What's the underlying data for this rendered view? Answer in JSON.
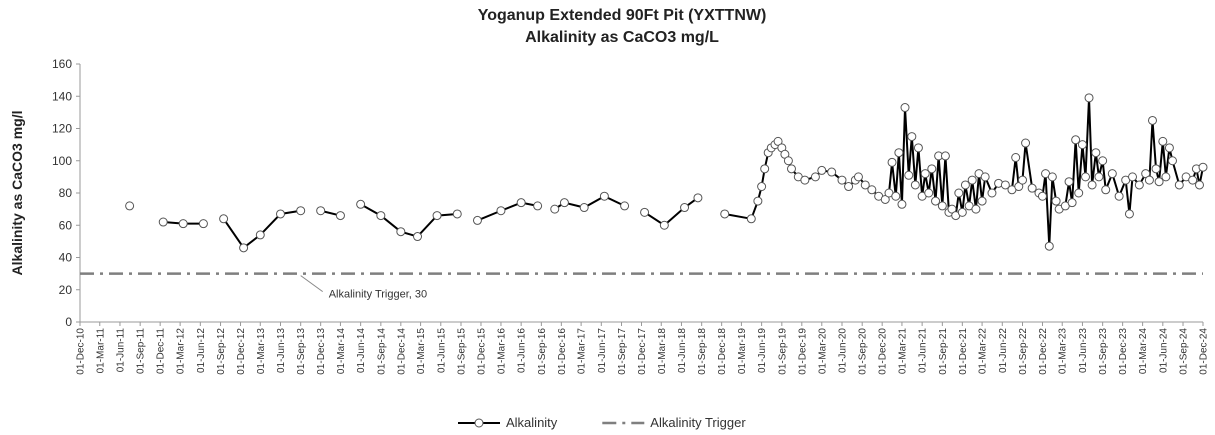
{
  "chart_data": {
    "type": "line",
    "title": "Yoganup Extended 90Ft Pit (YXTTNW)",
    "subtitle": "Alkalinity as CaCO3 mg/L",
    "y_label": "Alkalinity as CaCO3 mg/l",
    "ylim": [
      0,
      160
    ],
    "yticks": [
      0,
      20,
      40,
      60,
      80,
      100,
      120,
      140,
      160
    ],
    "xlim": [
      "2010-12-01",
      "2024-12-01"
    ],
    "xticks": [
      {
        "value": "2010-12-01",
        "label": "01-Dec-10"
      },
      {
        "value": "2011-03-01",
        "label": "01-Mar-11"
      },
      {
        "value": "2011-06-01",
        "label": "01-Jun-11"
      },
      {
        "value": "2011-09-01",
        "label": "01-Sep-11"
      },
      {
        "value": "2011-12-01",
        "label": "01-Dec-11"
      },
      {
        "value": "2012-03-01",
        "label": "01-Mar-12"
      },
      {
        "value": "2012-06-01",
        "label": "01-Jun-12"
      },
      {
        "value": "2012-09-01",
        "label": "01-Sep-12"
      },
      {
        "value": "2012-12-01",
        "label": "01-Dec-12"
      },
      {
        "value": "2013-03-01",
        "label": "01-Mar-13"
      },
      {
        "value": "2013-06-01",
        "label": "01-Jun-13"
      },
      {
        "value": "2013-09-01",
        "label": "01-Sep-13"
      },
      {
        "value": "2013-12-01",
        "label": "01-Dec-13"
      },
      {
        "value": "2014-03-01",
        "label": "01-Mar-14"
      },
      {
        "value": "2014-06-01",
        "label": "01-Jun-14"
      },
      {
        "value": "2014-09-01",
        "label": "01-Sep-14"
      },
      {
        "value": "2014-12-01",
        "label": "01-Dec-14"
      },
      {
        "value": "2015-03-01",
        "label": "01-Mar-15"
      },
      {
        "value": "2015-06-01",
        "label": "01-Jun-15"
      },
      {
        "value": "2015-09-01",
        "label": "01-Sep-15"
      },
      {
        "value": "2015-12-01",
        "label": "01-Dec-15"
      },
      {
        "value": "2016-03-01",
        "label": "01-Mar-16"
      },
      {
        "value": "2016-06-01",
        "label": "01-Jun-16"
      },
      {
        "value": "2016-09-01",
        "label": "01-Sep-16"
      },
      {
        "value": "2016-12-01",
        "label": "01-Dec-16"
      },
      {
        "value": "2017-03-01",
        "label": "01-Mar-17"
      },
      {
        "value": "2017-06-01",
        "label": "01-Jun-17"
      },
      {
        "value": "2017-09-01",
        "label": "01-Sep-17"
      },
      {
        "value": "2017-12-01",
        "label": "01-Dec-17"
      },
      {
        "value": "2018-03-01",
        "label": "01-Mar-18"
      },
      {
        "value": "2018-06-01",
        "label": "01-Jun-18"
      },
      {
        "value": "2018-09-01",
        "label": "01-Sep-18"
      },
      {
        "value": "2018-12-01",
        "label": "01-Dec-18"
      },
      {
        "value": "2019-03-01",
        "label": "01-Mar-19"
      },
      {
        "value": "2019-06-01",
        "label": "01-Jun-19"
      },
      {
        "value": "2019-09-01",
        "label": "01-Sep-19"
      },
      {
        "value": "2019-12-01",
        "label": "01-Dec-19"
      },
      {
        "value": "2020-03-01",
        "label": "01-Mar-20"
      },
      {
        "value": "2020-06-01",
        "label": "01-Jun-20"
      },
      {
        "value": "2020-09-01",
        "label": "01-Sep-20"
      },
      {
        "value": "2020-12-01",
        "label": "01-Dec-20"
      },
      {
        "value": "2021-03-01",
        "label": "01-Mar-21"
      },
      {
        "value": "2021-06-01",
        "label": "01-Jun-21"
      },
      {
        "value": "2021-09-01",
        "label": "01-Sep-21"
      },
      {
        "value": "2021-12-01",
        "label": "01-Dec-21"
      },
      {
        "value": "2022-03-01",
        "label": "01-Mar-22"
      },
      {
        "value": "2022-06-01",
        "label": "01-Jun-22"
      },
      {
        "value": "2022-09-01",
        "label": "01-Sep-22"
      },
      {
        "value": "2022-12-01",
        "label": "01-Dec-22"
      },
      {
        "value": "2023-03-01",
        "label": "01-Mar-23"
      },
      {
        "value": "2023-06-01",
        "label": "01-Jun-23"
      },
      {
        "value": "2023-09-01",
        "label": "01-Sep-23"
      },
      {
        "value": "2023-12-01",
        "label": "01-Dec-23"
      },
      {
        "value": "2024-03-01",
        "label": "01-Mar-24"
      },
      {
        "value": "2024-06-01",
        "label": "01-Jun-24"
      },
      {
        "value": "2024-09-01",
        "label": "01-Sep-24"
      },
      {
        "value": "2024-12-01",
        "label": "01-Dec-24"
      }
    ],
    "grid": false,
    "legend": "bottom",
    "series": [
      {
        "name": "Alkalinity",
        "color": "#000000",
        "marker": "circle",
        "x": [
          "2011-07-15",
          null,
          "2011-12-15",
          "2012-03-15",
          "2012-06-15",
          null,
          "2012-09-15",
          "2012-12-15",
          "2013-03-01",
          "2013-06-01",
          "2013-09-01",
          null,
          "2013-12-01",
          "2014-03-01",
          null,
          "2014-06-01",
          "2014-09-01",
          "2014-12-01",
          "2015-02-15",
          "2015-05-15",
          "2015-08-15",
          null,
          "2015-11-15",
          "2016-03-01",
          "2016-06-01",
          "2016-08-15",
          null,
          "2016-11-01",
          "2016-12-15",
          "2017-03-15",
          "2017-06-15",
          "2017-09-15",
          null,
          "2017-12-15",
          "2018-03-15",
          "2018-06-15",
          "2018-08-15",
          null,
          "2018-12-15",
          "2019-04-15",
          "2019-05-15",
          "2019-06-01",
          "2019-06-15",
          "2019-07-01",
          "2019-07-15",
          "2019-08-01",
          "2019-08-15",
          "2019-09-01",
          "2019-09-15",
          "2019-10-01",
          "2019-10-15",
          "2019-11-15",
          "2019-12-15",
          "2020-02-01",
          "2020-03-01",
          "2020-04-15",
          "2020-06-01",
          "2020-07-01",
          "2020-08-01",
          "2020-08-15",
          "2020-09-15",
          "2020-10-15",
          "2020-11-15",
          "2020-12-15",
          "2021-01-01",
          "2021-01-15",
          "2021-02-01",
          "2021-02-15",
          "2021-03-01",
          "2021-03-15",
          "2021-04-01",
          "2021-04-15",
          "2021-05-01",
          "2021-05-15",
          "2021-06-01",
          "2021-06-15",
          "2021-07-01",
          "2021-07-15",
          "2021-08-01",
          "2021-08-15",
          "2021-09-01",
          "2021-09-15",
          "2021-10-01",
          "2021-10-15",
          "2021-11-01",
          "2021-11-15",
          "2021-12-01",
          "2021-12-15",
          "2022-01-01",
          "2022-01-15",
          "2022-02-01",
          "2022-02-15",
          "2022-03-01",
          "2022-03-15",
          "2022-04-15",
          "2022-05-15",
          "2022-06-15",
          "2022-07-15",
          "2022-08-01",
          "2022-08-15",
          "2022-09-01",
          "2022-09-15",
          "2022-10-15",
          "2022-11-15",
          "2022-12-01",
          "2022-12-15",
          "2023-01-01",
          "2023-01-15",
          "2023-02-01",
          "2023-02-15",
          "2023-03-15",
          "2023-04-01",
          "2023-04-15",
          "2023-05-01",
          "2023-05-15",
          "2023-06-01",
          "2023-06-15",
          "2023-07-01",
          "2023-07-15",
          "2023-08-01",
          "2023-08-15",
          "2023-09-01",
          "2023-09-15",
          "2023-10-15",
          "2023-11-15",
          "2023-12-15",
          "2024-01-01",
          "2024-01-15",
          "2024-02-15",
          "2024-03-15",
          "2024-04-01",
          "2024-04-15",
          "2024-05-01",
          "2024-05-15",
          "2024-06-01",
          "2024-06-15",
          "2024-07-01",
          "2024-07-15",
          "2024-08-15",
          "2024-09-15",
          "2024-10-15",
          "2024-11-01",
          "2024-11-15",
          "2024-12-01"
        ],
        "values": [
          72,
          null,
          62,
          61,
          61,
          null,
          64,
          46,
          54,
          67,
          69,
          null,
          69,
          66,
          null,
          73,
          66,
          56,
          53,
          66,
          67,
          null,
          63,
          69,
          74,
          72,
          null,
          70,
          74,
          71,
          78,
          72,
          null,
          68,
          60,
          71,
          77,
          null,
          67,
          64,
          75,
          84,
          95,
          105,
          108,
          110,
          112,
          108,
          104,
          100,
          95,
          90,
          88,
          90,
          94,
          93,
          88,
          84,
          88,
          90,
          85,
          82,
          78,
          76,
          80,
          99,
          78,
          105,
          73,
          133,
          91,
          115,
          85,
          108,
          78,
          92,
          80,
          95,
          75,
          103,
          72,
          103,
          68,
          70,
          66,
          80,
          68,
          85,
          72,
          88,
          70,
          92,
          75,
          90,
          80,
          86,
          85,
          82,
          102,
          84,
          88,
          111,
          83,
          80,
          78,
          92,
          47,
          90,
          75,
          70,
          72,
          87,
          74,
          113,
          80,
          110,
          90,
          139,
          85,
          105,
          90,
          100,
          82,
          92,
          78,
          88,
          67,
          90,
          85,
          92,
          88,
          125,
          95,
          87,
          112,
          90,
          108,
          100,
          85,
          90,
          88,
          95,
          85,
          96
        ]
      },
      {
        "name": "Alkalinity Trigger",
        "color": "#7f7f7f",
        "dash": "dash-dot",
        "x": [
          "2010-12-01",
          "2024-12-01"
        ],
        "values": [
          30,
          30
        ]
      }
    ],
    "annotations": [
      {
        "text": "Alkalinity Trigger, 30",
        "x": "2013-09-01",
        "y": 30
      }
    ]
  }
}
